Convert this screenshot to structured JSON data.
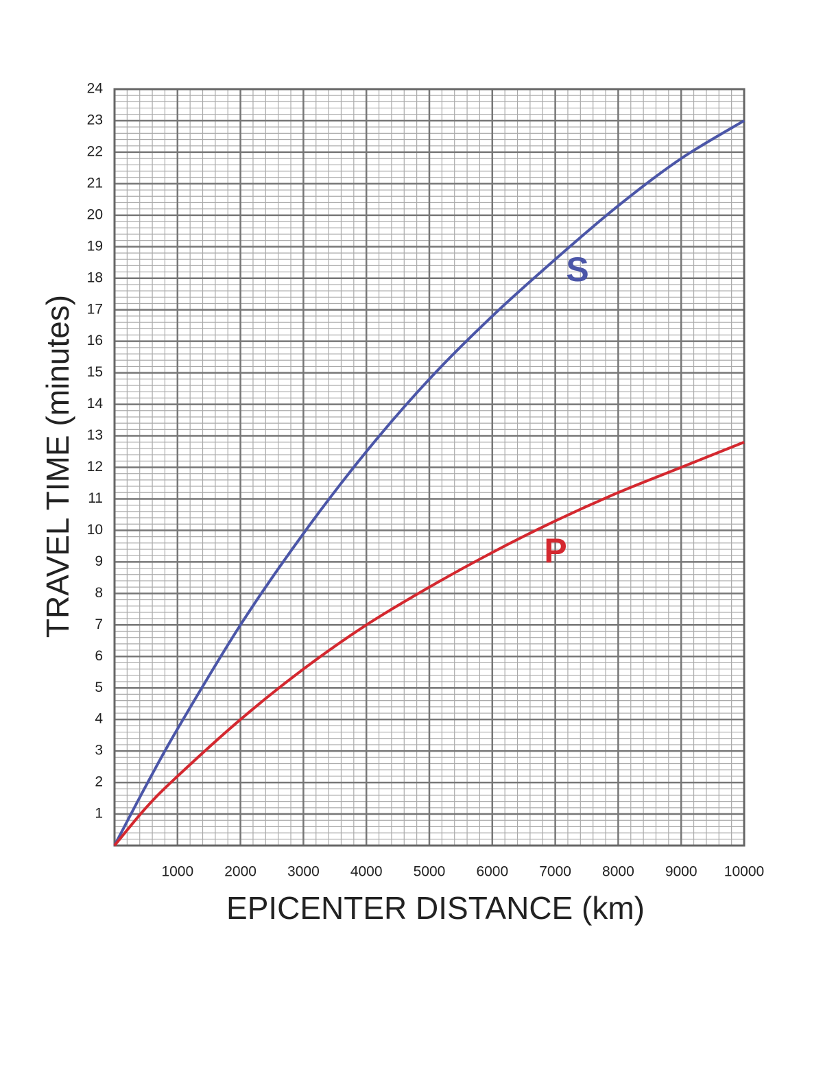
{
  "chart_data": {
    "type": "line",
    "x_label": "EPICENTER DISTANCE (km)",
    "y_label": "TRAVEL TIME (minutes)",
    "x": [
      0,
      500,
      1000,
      2000,
      3000,
      4000,
      5000,
      6000,
      7000,
      8000,
      9000,
      10000
    ],
    "series": [
      {
        "name": "S",
        "color": "#4b56a8",
        "values": [
          0,
          1.9,
          3.7,
          7.0,
          9.9,
          12.5,
          14.8,
          16.8,
          18.6,
          20.3,
          21.8,
          23.0
        ]
      },
      {
        "name": "P",
        "color": "#d4282f",
        "values": [
          0,
          1.2,
          2.2,
          4.0,
          5.6,
          7.0,
          8.2,
          9.3,
          10.3,
          11.2,
          12.0,
          12.8
        ]
      }
    ],
    "xlim": [
      0,
      10000
    ],
    "ylim": [
      0,
      24
    ],
    "xticks": [
      1000,
      2000,
      3000,
      4000,
      5000,
      6000,
      7000,
      8000,
      9000,
      10000
    ],
    "yticks": [
      1,
      2,
      3,
      4,
      5,
      6,
      7,
      8,
      9,
      10,
      11,
      12,
      13,
      14,
      15,
      16,
      17,
      18,
      19,
      20,
      21,
      22,
      23,
      24
    ],
    "grid": true,
    "minor_grid_divisions": 5
  }
}
